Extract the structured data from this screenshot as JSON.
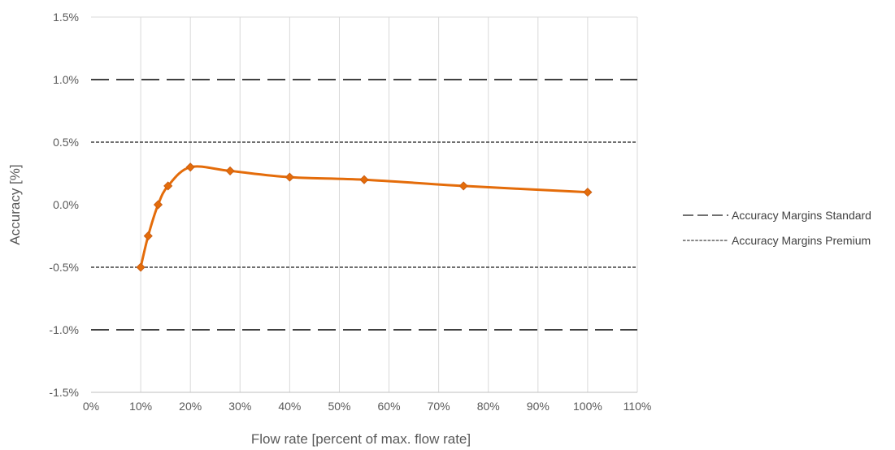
{
  "chart_data": {
    "type": "line",
    "title": "",
    "xlabel": "Flow rate [percent of max. flow rate]",
    "ylabel": "Accuracy [%]",
    "xlim": [
      0,
      110
    ],
    "ylim": [
      -1.5,
      1.5
    ],
    "x_ticks": [
      {
        "value": 0,
        "label": "0%"
      },
      {
        "value": 10,
        "label": "10%"
      },
      {
        "value": 20,
        "label": "20%"
      },
      {
        "value": 30,
        "label": "30%"
      },
      {
        "value": 40,
        "label": "40%"
      },
      {
        "value": 50,
        "label": "50%"
      },
      {
        "value": 60,
        "label": "60%"
      },
      {
        "value": 70,
        "label": "70%"
      },
      {
        "value": 80,
        "label": "80%"
      },
      {
        "value": 90,
        "label": "90%"
      },
      {
        "value": 100,
        "label": "100%"
      },
      {
        "value": 110,
        "label": "110%"
      }
    ],
    "y_ticks": [
      {
        "value": 1.5,
        "label": "1.5%"
      },
      {
        "value": 1.0,
        "label": "1.0%"
      },
      {
        "value": 0.5,
        "label": "0.5%"
      },
      {
        "value": 0.0,
        "label": "0.0%"
      },
      {
        "value": -0.5,
        "label": "-0.5%"
      },
      {
        "value": -1.0,
        "label": "-1.0%"
      },
      {
        "value": -1.5,
        "label": "-1.5%"
      }
    ],
    "grid": "vertical",
    "legend_position": "right",
    "series": [
      {
        "color": "#E46C0A",
        "marker": "diamond",
        "smooth": true,
        "x": [
          10,
          11.5,
          13.5,
          15.5,
          20,
          28,
          40,
          55,
          75,
          100
        ],
        "y": [
          -0.5,
          -0.25,
          0.0,
          0.15,
          0.3,
          0.27,
          0.22,
          0.2,
          0.15,
          0.1
        ]
      }
    ],
    "reference_lines": [
      {
        "name": "Accuracy Margins Standard",
        "style": "long-dash",
        "color": "#404040",
        "values": [
          1.0,
          -1.0
        ]
      },
      {
        "name": "Accuracy Margins Premium",
        "style": "short-dash",
        "color": "#404040",
        "values": [
          0.5,
          -0.5
        ]
      }
    ]
  }
}
